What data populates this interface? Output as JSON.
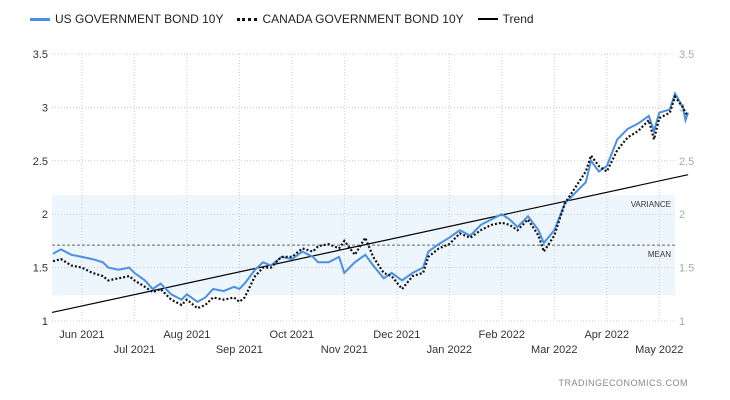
{
  "chart_data": {
    "type": "line",
    "legend": [
      "US GOVERNMENT BOND 10Y",
      "CANADA GOVERNMENT BOND 10Y",
      "Trend"
    ],
    "x_tick_labels": [
      "Jun 2021",
      "Jul 2021",
      "Aug 2021",
      "Sep 2021",
      "Oct 2021",
      "Nov 2021",
      "Dec 2021",
      "Jan 2022",
      "Feb 2022",
      "Mar 2022",
      "Apr 2022",
      "May 2022"
    ],
    "x_unit": "months since Jun 2021",
    "xlim": [
      -0.57,
      11.3
    ],
    "ylim": [
      1,
      3.5
    ],
    "y_ticks": [
      "1",
      "1.5",
      "2",
      "2.5",
      "3",
      "3.5"
    ],
    "grid": true,
    "legend_position": "top-left",
    "annotations": {
      "variance_label": "VARIANCE",
      "mean_label": "MEAN",
      "variance_band": [
        1.24,
        2.18
      ],
      "mean": 1.71
    },
    "trend": {
      "x": [
        -0.57,
        11.55
      ],
      "y": [
        1.08,
        2.37
      ]
    },
    "series": [
      {
        "name": "US GOVERNMENT BOND 10Y",
        "color": "#4a90e2",
        "x": [
          -0.55,
          -0.4,
          -0.2,
          0,
          0.2,
          0.4,
          0.5,
          0.7,
          0.9,
          1.0,
          1.2,
          1.35,
          1.5,
          1.7,
          1.9,
          2.0,
          2.2,
          2.35,
          2.5,
          2.7,
          2.9,
          3.0,
          3.1,
          3.3,
          3.45,
          3.6,
          3.8,
          4.0,
          4.2,
          4.4,
          4.5,
          4.7,
          4.9,
          5.0,
          5.2,
          5.4,
          5.55,
          5.75,
          5.9,
          6.1,
          6.3,
          6.5,
          6.6,
          6.8,
          7.0,
          7.2,
          7.4,
          7.6,
          7.8,
          8.0,
          8.15,
          8.3,
          8.5,
          8.7,
          8.8,
          9.0,
          9.2,
          9.4,
          9.6,
          9.7,
          9.85,
          10.0,
          10.2,
          10.4,
          10.6,
          10.8,
          10.9,
          11.0,
          11.2,
          11.3,
          11.45,
          11.5,
          11.55
        ],
        "y": [
          1.63,
          1.67,
          1.62,
          1.6,
          1.58,
          1.55,
          1.5,
          1.48,
          1.5,
          1.45,
          1.38,
          1.3,
          1.35,
          1.25,
          1.2,
          1.25,
          1.18,
          1.22,
          1.3,
          1.28,
          1.32,
          1.3,
          1.35,
          1.48,
          1.55,
          1.52,
          1.6,
          1.58,
          1.65,
          1.6,
          1.55,
          1.55,
          1.6,
          1.45,
          1.55,
          1.62,
          1.52,
          1.4,
          1.45,
          1.38,
          1.45,
          1.5,
          1.65,
          1.72,
          1.78,
          1.85,
          1.8,
          1.9,
          1.95,
          2.0,
          1.95,
          1.88,
          1.98,
          1.85,
          1.73,
          1.85,
          2.1,
          2.2,
          2.3,
          2.5,
          2.4,
          2.45,
          2.7,
          2.8,
          2.85,
          2.92,
          2.78,
          2.95,
          2.98,
          3.13,
          3.0,
          2.88,
          2.95
        ]
      },
      {
        "name": "CANADA GOVERNMENT BOND 10Y",
        "color": "#111111",
        "x": [
          -0.55,
          -0.4,
          -0.2,
          0,
          0.2,
          0.4,
          0.5,
          0.7,
          0.9,
          1.0,
          1.2,
          1.35,
          1.5,
          1.7,
          1.9,
          2.0,
          2.2,
          2.35,
          2.5,
          2.7,
          2.9,
          3.0,
          3.1,
          3.3,
          3.45,
          3.6,
          3.8,
          4.0,
          4.2,
          4.4,
          4.5,
          4.7,
          4.9,
          5.0,
          5.2,
          5.4,
          5.55,
          5.75,
          5.9,
          6.1,
          6.3,
          6.5,
          6.6,
          6.8,
          7.0,
          7.2,
          7.4,
          7.6,
          7.8,
          8.0,
          8.15,
          8.3,
          8.5,
          8.7,
          8.8,
          9.0,
          9.2,
          9.4,
          9.6,
          9.7,
          9.85,
          10.0,
          10.2,
          10.4,
          10.6,
          10.8,
          10.9,
          11.0,
          11.2,
          11.3,
          11.45,
          11.5,
          11.55
        ],
        "y": [
          1.56,
          1.58,
          1.52,
          1.5,
          1.45,
          1.42,
          1.38,
          1.4,
          1.42,
          1.38,
          1.32,
          1.27,
          1.3,
          1.2,
          1.15,
          1.2,
          1.12,
          1.15,
          1.22,
          1.2,
          1.22,
          1.18,
          1.22,
          1.42,
          1.5,
          1.5,
          1.6,
          1.6,
          1.68,
          1.65,
          1.7,
          1.72,
          1.68,
          1.75,
          1.62,
          1.78,
          1.6,
          1.45,
          1.42,
          1.3,
          1.42,
          1.45,
          1.6,
          1.68,
          1.72,
          1.82,
          1.78,
          1.85,
          1.9,
          1.92,
          1.9,
          1.85,
          1.95,
          1.8,
          1.65,
          1.8,
          2.1,
          2.25,
          2.4,
          2.55,
          2.45,
          2.4,
          2.6,
          2.72,
          2.78,
          2.88,
          2.7,
          2.9,
          2.95,
          3.1,
          3.0,
          2.95,
          2.92
        ]
      }
    ]
  },
  "credit": "TRADINGECONOMICS.COM"
}
